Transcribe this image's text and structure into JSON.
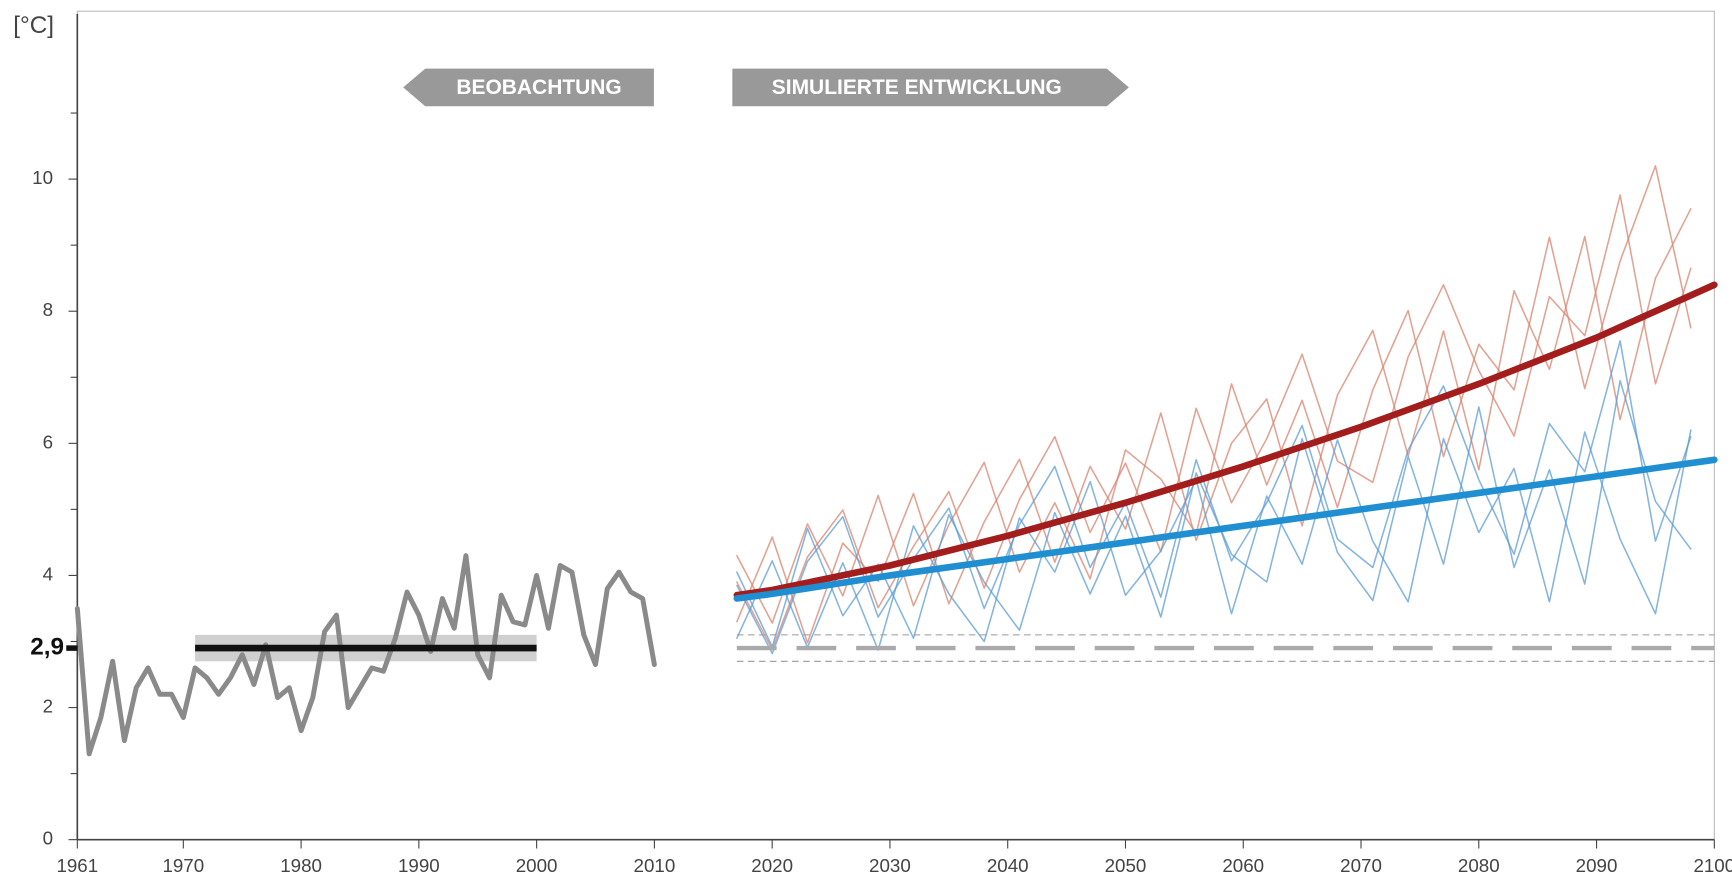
{
  "chart_data": {
    "type": "line",
    "y_unit": "[°C]",
    "banners": {
      "observed": "BEOBACHTUNG",
      "simulated": "SIMULIERTE ENTWICKLUNG"
    },
    "xlim": [
      1961,
      2100
    ],
    "ylim": [
      0,
      12.5
    ],
    "xticks": [
      1961,
      1970,
      1980,
      1990,
      2000,
      2010,
      2020,
      2030,
      2040,
      2050,
      2060,
      2070,
      2080,
      2090,
      2100
    ],
    "yticks": [
      0,
      2,
      4,
      6,
      8,
      10
    ],
    "yminor": [
      1,
      3,
      5,
      7,
      9,
      11
    ],
    "reference": {
      "value": 2.9,
      "label": "2,9",
      "x": [
        1971,
        2000
      ],
      "band": [
        2.7,
        3.1
      ],
      "projection_x": [
        2017,
        2100
      ]
    },
    "observed": {
      "color": "#8a8a8a",
      "x": [
        1961,
        1962,
        1963,
        1964,
        1965,
        1966,
        1967,
        1968,
        1969,
        1970,
        1971,
        1972,
        1973,
        1974,
        1975,
        1976,
        1977,
        1978,
        1979,
        1980,
        1981,
        1982,
        1983,
        1984,
        1985,
        1986,
        1987,
        1988,
        1989,
        1990,
        1991,
        1992,
        1993,
        1994,
        1995,
        1996,
        1997,
        1998,
        1999,
        2000,
        2001,
        2002,
        2003,
        2004,
        2005,
        2006,
        2007,
        2008,
        2009,
        2010
      ],
      "values": [
        3.5,
        1.3,
        1.85,
        2.7,
        1.5,
        2.3,
        2.6,
        2.2,
        2.2,
        1.85,
        2.6,
        2.45,
        2.2,
        2.45,
        2.8,
        2.35,
        2.95,
        2.15,
        2.3,
        1.65,
        2.15,
        3.15,
        3.4,
        2.0,
        2.3,
        2.6,
        2.55,
        3.05,
        3.75,
        3.4,
        2.85,
        3.65,
        3.2,
        4.3,
        2.8,
        2.45,
        3.7,
        3.3,
        3.25,
        4.0,
        3.2,
        4.15,
        4.05,
        3.1,
        2.65,
        3.8,
        4.05,
        3.75,
        3.65,
        2.65
      ]
    },
    "ensemble_x": [
      2017,
      2020,
      2023,
      2026,
      2029,
      2032,
      2035,
      2038,
      2041,
      2044,
      2047,
      2050,
      2053,
      2056,
      2059,
      2062,
      2065,
      2068,
      2071,
      2074,
      2077,
      2080,
      2083,
      2086,
      2089,
      2092,
      2095,
      2098
    ],
    "ensemble": [
      {
        "color": "#d9826c",
        "values": [
          4.3,
          3.28,
          4.78,
          3.69,
          5.21,
          3.54,
          4.77,
          5.71,
          4.05,
          5.1,
          3.95,
          5.9,
          5.46,
          4.63,
          6.9,
          5.37,
          6.65,
          5.03,
          6.81,
          8.01,
          5.8,
          7.5,
          6.81,
          9.12,
          6.83,
          8.76,
          10.2,
          7.75
        ]
      },
      {
        "color": "#d9826c",
        "values": [
          3.3,
          4.58,
          2.98,
          4.49,
          3.91,
          5.24,
          3.57,
          4.81,
          5.76,
          4.2,
          5.65,
          4.7,
          6.46,
          4.53,
          6.0,
          6.67,
          4.75,
          6.73,
          7.71,
          5.81,
          7.7,
          5.6,
          8.31,
          7.12,
          9.13,
          6.36,
          8.5,
          9.55
        ]
      },
      {
        "color": "#d9826c",
        "values": [
          3.9,
          2.88,
          4.28,
          4.99,
          3.51,
          4.44,
          5.27,
          3.81,
          5.15,
          6.1,
          4.65,
          5.7,
          4.36,
          6.53,
          5.1,
          6.07,
          7.35,
          5.73,
          5.41,
          7.31,
          8.4,
          7.1,
          6.11,
          8.22,
          7.63,
          9.76,
          6.9,
          8.65
        ]
      },
      {
        "color": "#5b9bd5",
        "values": [
          3.05,
          4.22,
          2.91,
          4.19,
          2.87,
          4.75,
          3.72,
          3.0,
          4.87,
          4.05,
          5.42,
          3.7,
          4.37,
          5.45,
          3.42,
          5.2,
          4.17,
          6.05,
          4.52,
          3.6,
          6.07,
          4.65,
          5.62,
          3.6,
          6.17,
          4.55,
          3.42,
          6.2
        ]
      },
      {
        "color": "#5b9bd5",
        "values": [
          3.85,
          2.82,
          4.21,
          4.89,
          3.37,
          4.25,
          5.02,
          3.5,
          4.77,
          5.65,
          4.12,
          5.1,
          3.67,
          5.75,
          4.22,
          5.1,
          6.27,
          4.55,
          4.12,
          5.9,
          6.87,
          5.45,
          4.32,
          6.3,
          5.57,
          7.55,
          4.52,
          6.1
        ]
      },
      {
        "color": "#5b9bd5",
        "values": [
          4.05,
          2.92,
          4.71,
          3.39,
          4.17,
          3.05,
          4.92,
          3.9,
          3.17,
          4.95,
          3.72,
          4.9,
          3.37,
          5.55,
          4.32,
          3.9,
          6.07,
          4.35,
          3.62,
          5.8,
          4.17,
          6.55,
          4.12,
          5.6,
          3.87,
          6.95,
          5.12,
          4.4
        ]
      }
    ],
    "trend_x": [
      2017,
      2020,
      2030,
      2040,
      2050,
      2060,
      2070,
      2080,
      2090,
      2100
    ],
    "trend": [
      {
        "color": "#a31d1d",
        "values": [
          3.7,
          3.78,
          4.15,
          4.6,
          5.1,
          5.65,
          6.25,
          6.9,
          7.6,
          8.4
        ]
      },
      {
        "color": "#1f8fd1",
        "values": [
          3.65,
          3.72,
          4.0,
          4.25,
          4.5,
          4.75,
          5.0,
          5.25,
          5.5,
          5.75
        ]
      }
    ]
  }
}
